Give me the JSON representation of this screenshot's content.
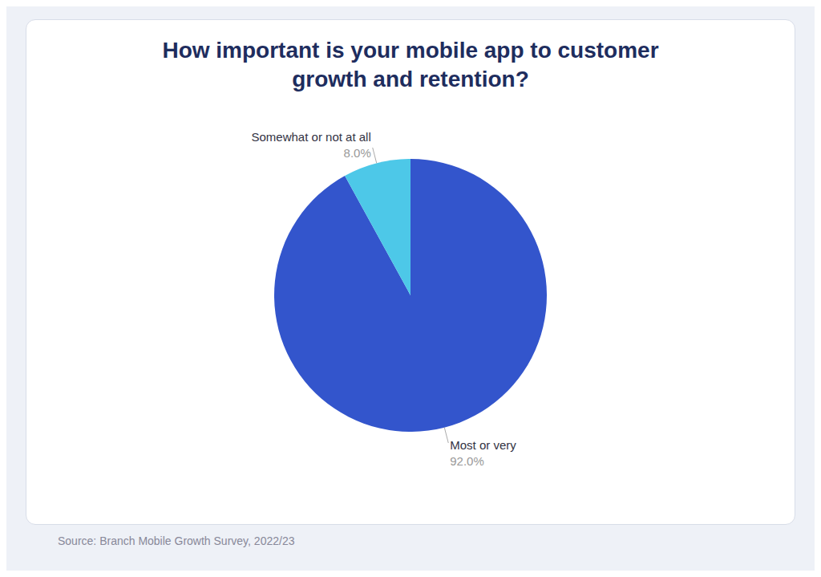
{
  "chart_data": {
    "type": "pie",
    "title": "How important is your mobile app to customer\ngrowth and retention?",
    "categories": [
      "Most or very",
      "Somewhat or not at all"
    ],
    "values": [
      92.0,
      8.0
    ],
    "value_labels": [
      "92.0%",
      "8.0%"
    ],
    "colors": [
      "#3355cc",
      "#4dc8e8"
    ],
    "data_labels": true,
    "annotations": [
      "Source: Branch Mobile Growth Survey, 2022/23"
    ]
  }
}
